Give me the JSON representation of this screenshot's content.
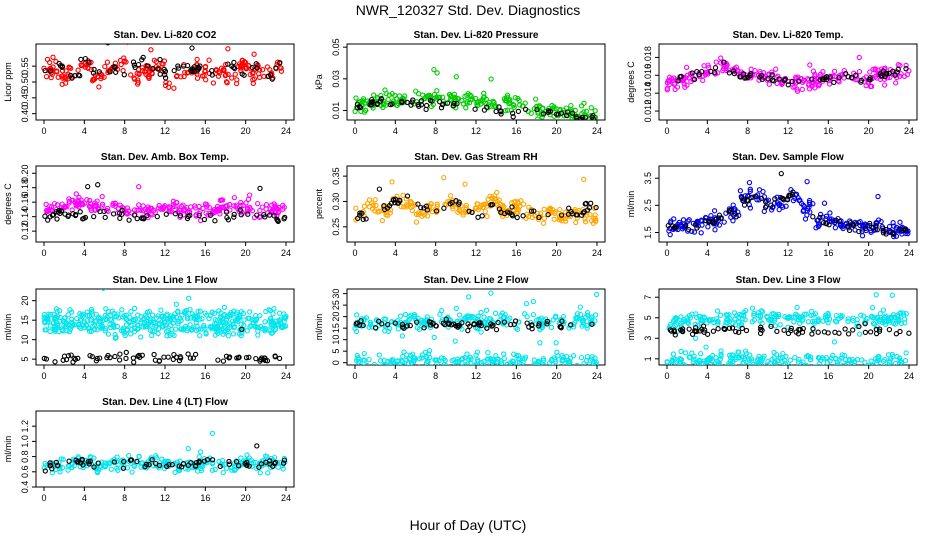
{
  "title": "NWR_120327  Std. Dev. Diagnostics",
  "xlabel": "Hour of Day (UTC)",
  "chart_data": [
    {
      "type": "scatter",
      "title": "Stan. Dev. Li-820 CO2",
      "ylabel": "Licor ppm",
      "xlim": [
        0,
        24
      ],
      "ylim": [
        0.38,
        0.62
      ],
      "xticks": [
        "0",
        "4",
        "8",
        "12",
        "16",
        "20",
        "24"
      ],
      "yticks": [
        "0.40",
        "0.45",
        "0.50",
        "0.55"
      ],
      "series": [
        {
          "color": "#ff0000",
          "values": [
            0.54,
            0.52,
            0.53,
            0.55,
            0.51,
            0.54,
            0.56,
            0.52,
            0.53,
            0.55,
            0.5,
            0.53,
            0.54,
            0.52,
            0.53,
            0.51,
            0.55,
            0.52,
            0.53,
            0.54
          ]
        },
        {
          "color": "#000000",
          "values": [
            0.54,
            0.55,
            0.52,
            0.56,
            0.53,
            0.54,
            0.52,
            0.55,
            0.56,
            0.53,
            0.52,
            0.55,
            0.54,
            0.53,
            0.52,
            0.55,
            0.53,
            0.54,
            0.52,
            0.55
          ]
        }
      ]
    },
    {
      "type": "scatter",
      "title": "Stan. Dev. Li-820 Pressure",
      "ylabel": "kPa",
      "xlim": [
        0,
        24
      ],
      "ylim": [
        0.004,
        0.052
      ],
      "xticks": [
        "0",
        "4",
        "8",
        "12",
        "16",
        "20",
        "24"
      ],
      "yticks": [
        "0.01",
        "0.03",
        "0.05"
      ],
      "series": [
        {
          "color": "#00cc00",
          "values": [
            0.014,
            0.015,
            0.016,
            0.017,
            0.016,
            0.017,
            0.018,
            0.017,
            0.016,
            0.017,
            0.016,
            0.015,
            0.015,
            0.013,
            0.012,
            0.011,
            0.01,
            0.009,
            0.008,
            0.007
          ]
        },
        {
          "color": "#000000",
          "values": [
            0.012,
            0.014,
            0.016,
            0.015,
            0.014,
            0.013,
            0.015,
            0.014,
            0.013,
            0.012,
            0.011,
            0.01,
            0.01,
            0.009,
            0.008,
            0.008,
            0.007,
            0.007,
            0.006,
            0.006
          ]
        }
      ]
    },
    {
      "type": "scatter",
      "title": "Stan. Dev. Li-820 Temp.",
      "ylabel": "degrees C",
      "xlim": [
        0,
        24
      ],
      "ylim": [
        0.011,
        0.0195
      ],
      "xticks": [
        "0",
        "4",
        "8",
        "12",
        "16",
        "20",
        "24"
      ],
      "yticks": [
        "0.012",
        "0.014",
        "0.016",
        "0.018"
      ],
      "series": [
        {
          "color": "#ff00ff",
          "values": [
            0.015,
            0.0155,
            0.016,
            0.0165,
            0.017,
            0.0165,
            0.016,
            0.0158,
            0.016,
            0.0155,
            0.015,
            0.0152,
            0.0155,
            0.0158,
            0.016,
            0.0158,
            0.0155,
            0.016,
            0.0162,
            0.0165
          ]
        },
        {
          "color": "#000000",
          "values": [
            0.0152,
            0.0155,
            0.016,
            0.0162,
            0.0168,
            0.0164,
            0.0158,
            0.0156,
            0.0158,
            0.0154,
            0.0152,
            0.0154,
            0.0156,
            0.0158,
            0.016,
            0.0158,
            0.0156,
            0.016,
            0.0162,
            0.0164
          ]
        }
      ]
    },
    {
      "type": "scatter",
      "title": "Stan. Dev. Amb. Box Temp.",
      "ylabel": "degrees C",
      "xlim": [
        0,
        24
      ],
      "ylim": [
        0.105,
        0.21
      ],
      "xticks": [
        "0",
        "4",
        "8",
        "12",
        "16",
        "20",
        "24"
      ],
      "yticks": [
        "0.12",
        "0.14",
        "0.16",
        "0.18",
        "0.20"
      ],
      "series": [
        {
          "color": "#ff00ff",
          "values": [
            0.15,
            0.155,
            0.16,
            0.158,
            0.155,
            0.152,
            0.15,
            0.148,
            0.15,
            0.152,
            0.155,
            0.15,
            0.148,
            0.15,
            0.152,
            0.155,
            0.15,
            0.148,
            0.15,
            0.152
          ]
        },
        {
          "color": "#000000",
          "values": [
            0.14,
            0.145,
            0.142,
            0.138,
            0.145,
            0.14,
            0.142,
            0.138,
            0.14,
            0.142,
            0.145,
            0.14,
            0.142,
            0.138,
            0.14,
            0.142,
            0.145,
            0.14,
            0.142,
            0.138
          ]
        }
      ]
    },
    {
      "type": "scatter",
      "title": "Stan. Dev. Gas Stream RH",
      "ylabel": "percent",
      "xlim": [
        0,
        24
      ],
      "ylim": [
        0.22,
        0.37
      ],
      "xticks": [
        "0",
        "4",
        "8",
        "12",
        "16",
        "20",
        "24"
      ],
      "yticks": [
        "0.25",
        "0.30",
        "0.35"
      ],
      "series": [
        {
          "color": "#ffa500",
          "values": [
            0.28,
            0.29,
            0.28,
            0.3,
            0.29,
            0.28,
            0.29,
            0.3,
            0.29,
            0.28,
            0.29,
            0.3,
            0.28,
            0.29,
            0.28,
            0.27,
            0.28,
            0.27,
            0.28,
            0.27
          ]
        },
        {
          "color": "#000000",
          "values": [
            0.27,
            0.28,
            0.29,
            0.3,
            0.31,
            0.29,
            0.28,
            0.29,
            0.3,
            0.28,
            0.27,
            0.29,
            0.28,
            0.27,
            0.28,
            0.27,
            0.26,
            0.28,
            0.27,
            0.29
          ]
        }
      ]
    },
    {
      "type": "scatter",
      "title": "Stan. Dev. Sample Flow",
      "ylabel": "ml/min",
      "xlim": [
        0,
        24
      ],
      "ylim": [
        1.15,
        3.95
      ],
      "xticks": [
        "0",
        "4",
        "8",
        "12",
        "16",
        "20",
        "24"
      ],
      "yticks": [
        "1.5",
        "2.5",
        "3.5"
      ],
      "series": [
        {
          "color": "#0000ee",
          "values": [
            1.7,
            1.8,
            1.8,
            1.9,
            2.0,
            2.2,
            2.8,
            2.9,
            2.5,
            2.6,
            2.8,
            2.4,
            2.0,
            1.9,
            1.8,
            1.8,
            1.7,
            1.7,
            1.6,
            1.6
          ]
        },
        {
          "color": "#000000",
          "values": [
            1.7,
            1.8,
            1.8,
            1.9,
            2.0,
            2.2,
            2.7,
            2.8,
            2.6,
            2.7,
            2.9,
            2.3,
            2.0,
            1.9,
            1.8,
            1.7,
            1.7,
            1.6,
            1.6,
            1.6
          ]
        }
      ]
    },
    {
      "type": "scatter",
      "title": "Stan. Dev. Line 1 Flow",
      "ylabel": "ml/min",
      "xlim": [
        0,
        24
      ],
      "ylim": [
        3.5,
        23
      ],
      "xticks": [
        "0",
        "4",
        "8",
        "12",
        "16",
        "20",
        "24"
      ],
      "yticks": [
        "5",
        "10",
        "15",
        "20"
      ],
      "series": [
        {
          "color": "#00e5ee",
          "values": [
            15.5,
            16.0,
            15.8,
            16.2,
            15.9,
            15.7,
            16.1,
            15.8,
            16.0,
            15.6,
            15.9,
            16.1,
            15.7,
            16.0,
            15.8,
            16.2,
            15.9,
            15.7,
            16.0,
            15.8
          ]
        },
        {
          "color": "#00e5ee",
          "values": [
            13.0,
            13.2,
            12.9,
            13.3,
            13.1,
            12.8,
            13.0,
            13.2,
            12.9,
            13.1,
            13.0,
            13.2,
            12.9,
            13.1,
            13.0,
            13.2,
            12.8,
            13.1,
            13.0,
            13.2
          ]
        },
        {
          "color": "#000000",
          "values": [
            5.2,
            5.4,
            5.3,
            5.5,
            5.4,
            5.3,
            5.6,
            5.5,
            5.4,
            5.3,
            5.5,
            5.4,
            5.3,
            5.4,
            5.5,
            5.3,
            5.4,
            5.3,
            5.4,
            5.3
          ]
        }
      ]
    },
    {
      "type": "scatter",
      "title": "Stan. Dev. Line 2 Flow",
      "ylabel": "ml/min",
      "xlim": [
        0,
        24
      ],
      "ylim": [
        -1,
        32
      ],
      "xticks": [
        "0",
        "4",
        "8",
        "12",
        "16",
        "20",
        "24"
      ],
      "yticks": [
        "0",
        "5",
        "10",
        "15",
        "20",
        "25",
        "30"
      ],
      "series": [
        {
          "color": "#00e5ee",
          "values": [
            17.5,
            17.8,
            17.6,
            17.9,
            17.7,
            17.8,
            17.6,
            17.9,
            17.7,
            17.8,
            17.6,
            17.9,
            17.8,
            17.7,
            17.9,
            17.6,
            17.8,
            17.7,
            17.9,
            17.6
          ]
        },
        {
          "color": "#00e5ee",
          "values": [
            0.5,
            0.6,
            0.4,
            0.5,
            0.6,
            0.5,
            0.4,
            0.6,
            0.5,
            0.5,
            0.6,
            0.4,
            0.5,
            0.6,
            0.5,
            0.4,
            0.6,
            0.5,
            0.5,
            0.6
          ]
        },
        {
          "color": "#000000",
          "values": [
            16.2,
            16.4,
            16.3,
            16.5,
            16.4,
            16.3,
            16.6,
            16.5,
            16.4,
            16.3,
            16.5,
            16.4,
            16.3,
            16.4,
            16.5,
            16.3,
            16.4,
            16.3,
            16.4,
            16.3
          ]
        }
      ]
    },
    {
      "type": "scatter",
      "title": "Stan. Dev. Line 3 Flow",
      "ylabel": "ml/min",
      "xlim": [
        0,
        24
      ],
      "ylim": [
        0.4,
        7.8
      ],
      "xticks": [
        "0",
        "4",
        "8",
        "12",
        "16",
        "20",
        "24"
      ],
      "yticks": [
        "1",
        "3",
        "5",
        "7"
      ],
      "series": [
        {
          "color": "#00e5ee",
          "values": [
            4.7,
            4.8,
            4.9,
            5.0,
            4.9,
            4.8,
            5.0,
            5.1,
            4.9,
            4.8,
            5.0,
            4.9,
            4.8,
            5.0,
            4.9,
            4.8,
            5.0,
            4.9,
            4.8,
            5.0
          ]
        },
        {
          "color": "#00e5ee",
          "values": [
            0.8,
            0.8,
            0.8,
            0.8,
            0.8,
            0.8,
            0.8,
            0.8,
            0.8,
            0.8,
            0.8,
            0.8,
            0.8,
            0.8,
            0.8,
            0.8,
            0.8,
            0.8,
            0.8,
            0.8
          ]
        },
        {
          "color": "#000000",
          "values": [
            3.7,
            3.8,
            3.7,
            3.9,
            3.8,
            3.7,
            3.8,
            3.9,
            3.8,
            3.7,
            3.8,
            3.9,
            3.8,
            3.7,
            3.8,
            3.9,
            3.8,
            3.7,
            3.8,
            3.7
          ]
        }
      ]
    },
    {
      "type": "scatter",
      "title": "Stan. Dev. Line 4 (LT) Flow",
      "ylabel": "ml/min",
      "xlim": [
        0,
        24
      ],
      "ylim": [
        0.4,
        1.4
      ],
      "xticks": [
        "0",
        "4",
        "8",
        "12",
        "16",
        "20",
        "24"
      ],
      "yticks": [
        "0.4",
        "0.6",
        "0.8",
        "1.0",
        "1.2"
      ],
      "series": [
        {
          "color": "#00e5ee",
          "values": [
            0.68,
            0.7,
            0.72,
            0.7,
            0.68,
            0.71,
            0.7,
            0.72,
            0.69,
            0.7,
            0.71,
            0.68,
            0.7,
            0.72,
            0.69,
            0.7,
            0.71,
            0.68,
            0.7,
            0.69
          ]
        },
        {
          "color": "#000000",
          "values": [
            0.66,
            0.7,
            0.74,
            0.72,
            0.68,
            0.72,
            0.7,
            0.76,
            0.7,
            0.72,
            0.68,
            0.7,
            0.72,
            0.74,
            0.7,
            0.72,
            0.7,
            0.68,
            0.72,
            0.7
          ]
        }
      ]
    }
  ]
}
